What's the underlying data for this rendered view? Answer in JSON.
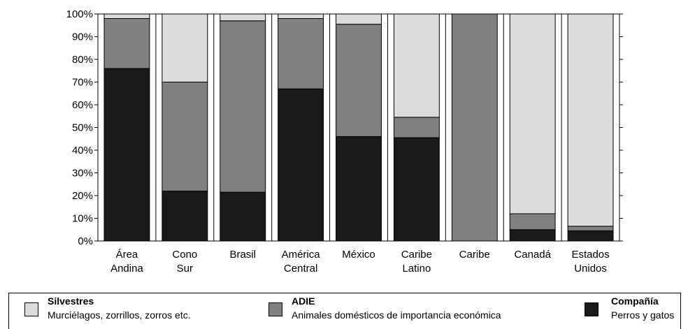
{
  "chart_data": {
    "type": "bar",
    "stacked": true,
    "ylim": [
      0,
      100
    ],
    "yticks": [
      "0%",
      "10%",
      "20%",
      "30%",
      "40%",
      "50%",
      "60%",
      "70%",
      "80%",
      "90%",
      "100%"
    ],
    "categories": [
      [
        "Área",
        "Andina"
      ],
      [
        "Cono",
        "Sur"
      ],
      [
        "Brasil"
      ],
      [
        "América",
        "Central"
      ],
      [
        "México"
      ],
      [
        "Caribe",
        "Latino"
      ],
      [
        "Caribe"
      ],
      [
        "Canadá"
      ],
      [
        "Estados",
        "Unidos"
      ]
    ],
    "series": [
      {
        "name": "Compañía",
        "color": "#1a1a1a",
        "values": [
          76,
          22,
          21.5,
          67,
          46,
          45.5,
          0,
          5,
          4.5
        ]
      },
      {
        "name": "ADIE",
        "color": "#808080",
        "values": [
          22,
          48,
          75.5,
          31,
          49.5,
          9,
          100,
          7,
          2
        ]
      },
      {
        "name": "Silvestres",
        "color": "#dcdcdc",
        "values": [
          2,
          30,
          3,
          2,
          4.5,
          45.5,
          0,
          88,
          93.5
        ]
      }
    ],
    "grid": false
  },
  "legend": [
    {
      "name": "Silvestres",
      "desc": "Murciélagos, zorrillos, zorros etc.",
      "color": "#dcdcdc"
    },
    {
      "name": "ADIE",
      "desc": "Animales domésticos de importancia económica",
      "color": "#808080"
    },
    {
      "name": "Compañía",
      "desc": "Perros y gatos",
      "color": "#1a1a1a"
    }
  ]
}
